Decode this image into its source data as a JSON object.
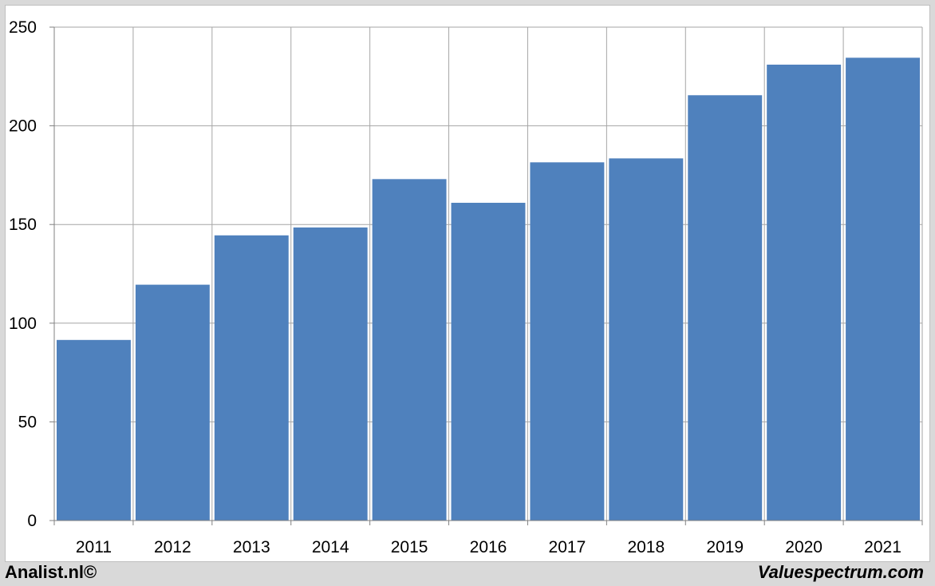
{
  "chart_data": {
    "type": "bar",
    "title": "",
    "xlabel": "",
    "ylabel": "",
    "categories": [
      "2011",
      "2012",
      "2013",
      "2014",
      "2015",
      "2016",
      "2017",
      "2018",
      "2019",
      "2020",
      "2021"
    ],
    "values": [
      91.5,
      119.5,
      144.5,
      148.5,
      173,
      161,
      181.5,
      183.5,
      215.5,
      231,
      234.5
    ],
    "ylim": [
      0,
      250
    ],
    "yticks": [
      0,
      50,
      100,
      150,
      200,
      250
    ],
    "grid": true,
    "bar_color": "#4f81bd",
    "grid_color": "#a6a6a6"
  },
  "footer": {
    "left": "Analist.nl©",
    "right": "Valuespectrum.com"
  }
}
